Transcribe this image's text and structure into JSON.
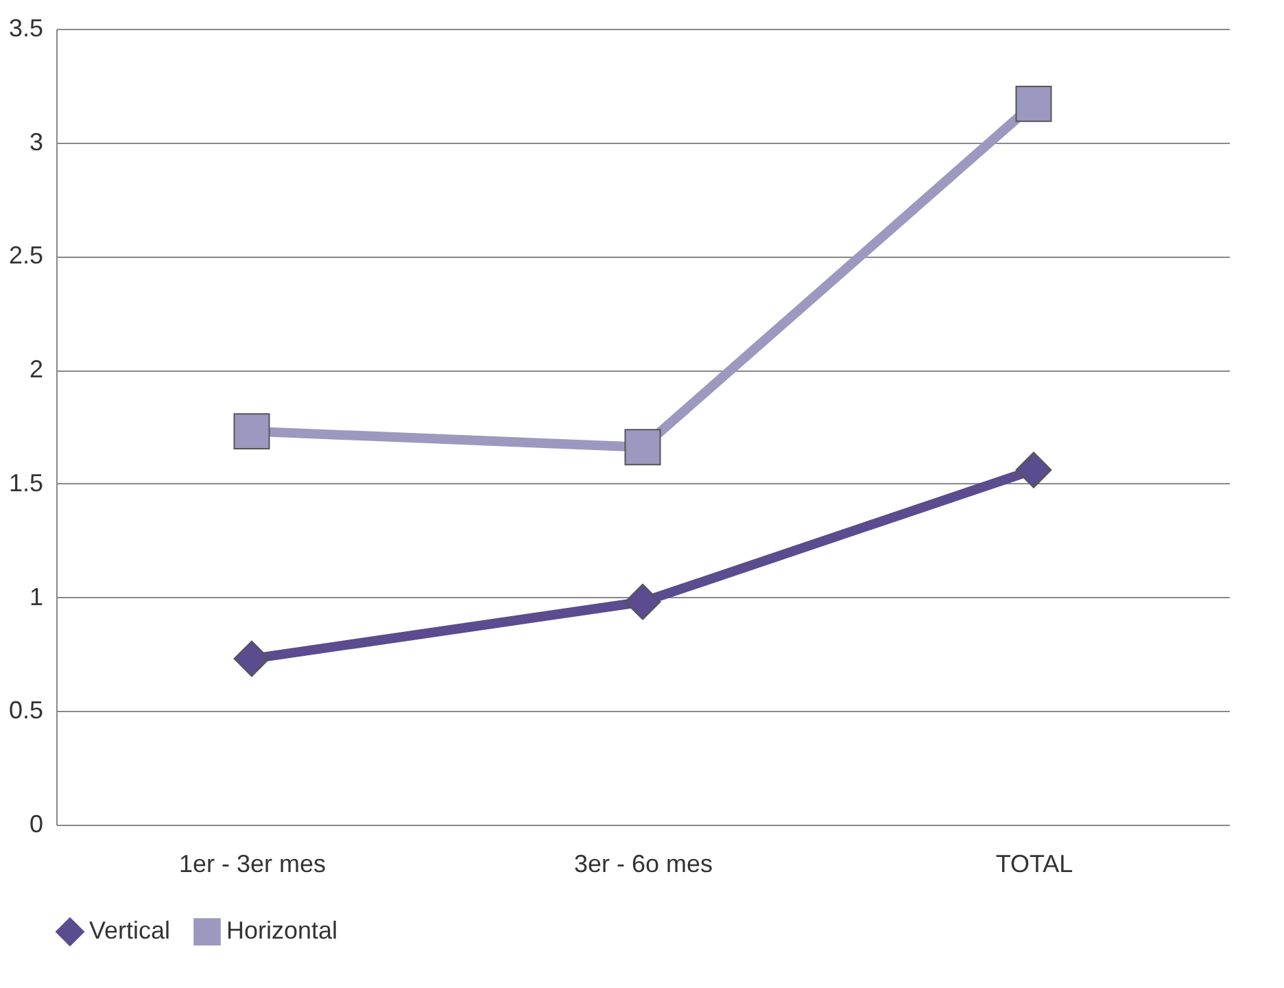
{
  "chart_data": {
    "type": "line",
    "categories": [
      "1er - 3er mes",
      "3er - 6o mes",
      "TOTAL"
    ],
    "series": [
      {
        "name": "Vertical",
        "color": "#5b4b8f",
        "marker": "diamond",
        "values": [
          0.73,
          0.98,
          1.56
        ]
      },
      {
        "name": "Horizontal",
        "color": "#9c98bf",
        "marker": "square",
        "values": [
          1.73,
          1.66,
          3.17
        ]
      }
    ],
    "ylim": [
      0,
      3.5
    ],
    "yticks": [
      0,
      0.5,
      1,
      1.5,
      2,
      2.5,
      3,
      3.5
    ],
    "grid": "y",
    "legend": "bottom",
    "line_style": "solid"
  }
}
